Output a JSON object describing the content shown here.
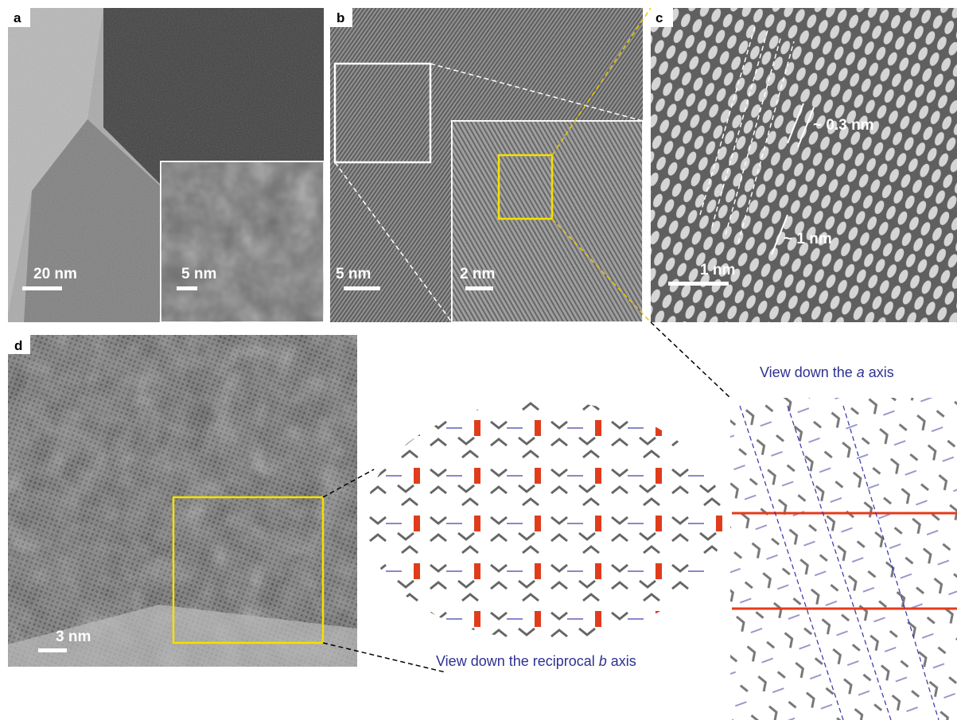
{
  "panels": {
    "a": {
      "label": "a",
      "scale": "20 nm",
      "inset_scale": "5 nm"
    },
    "b": {
      "label": "b",
      "scale": "5 nm",
      "inset_scale": "2 nm"
    },
    "c": {
      "label": "c",
      "scale": "1 nm",
      "spacing_small": "~ 0.3 nm",
      "spacing_large": "~ 1 nm"
    },
    "d": {
      "label": "d",
      "scale": "3 nm"
    }
  },
  "captions": {
    "a_axis": {
      "before": "View down the ",
      "italic": "a",
      "after": " axis"
    },
    "b_axis": {
      "before": "View down the reciprocal ",
      "italic": "b",
      "after": " axis"
    }
  }
}
